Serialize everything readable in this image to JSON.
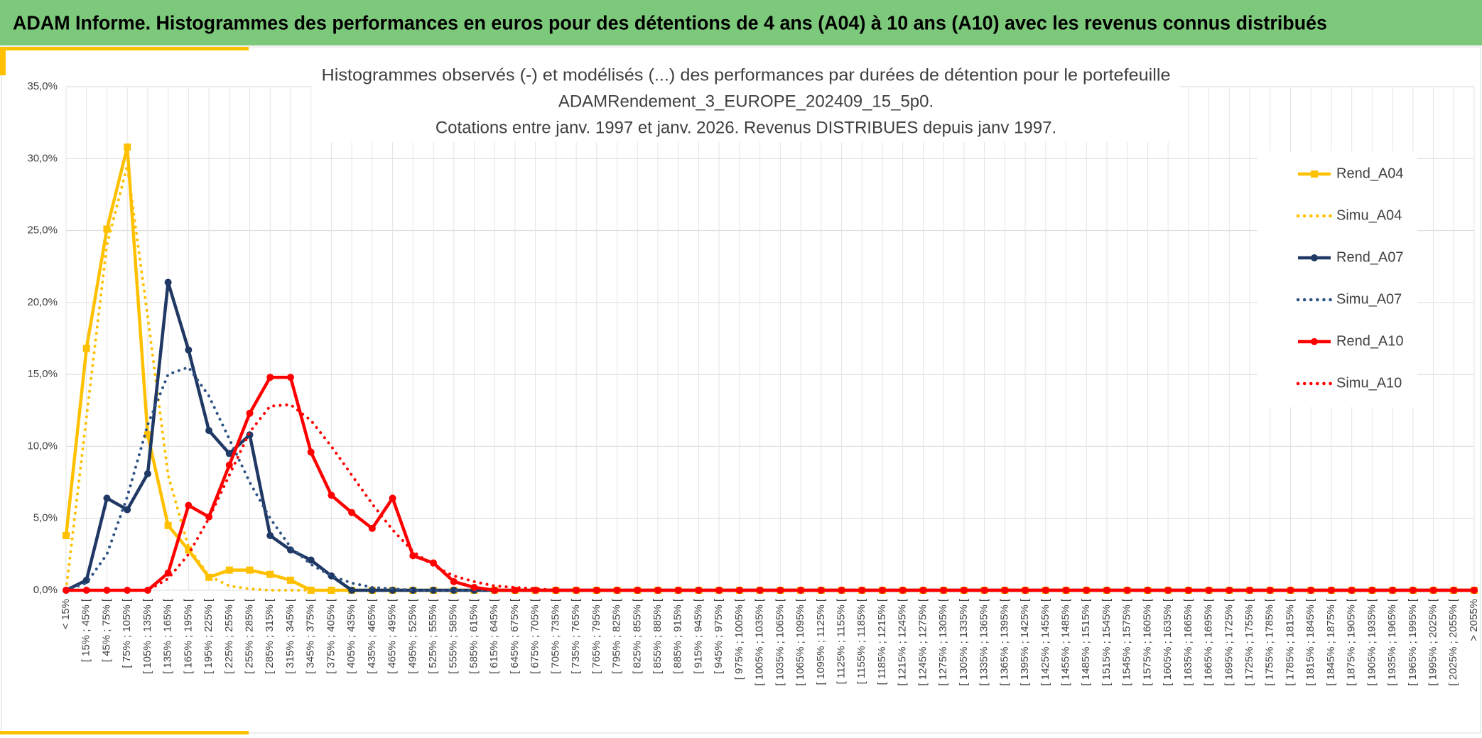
{
  "header": {
    "title": "ADAM Informe. Histogrammes des performances en euros pour des détentions de 4 ans (A04) à 10 ans (A10) avec les revenus connus distribués"
  },
  "chart_data": {
    "type": "line",
    "title": [
      "Histogrammes observés (-) et modélisés (...) des performances  par durées de détention pour le portefeuille",
      "ADAMRendement_3_EUROPE_202409_15_5p0.",
      "Cotations entre janv. 1997 et janv. 2026. Revenus DISTRIBUES depuis janv 1997."
    ],
    "categories": [
      "< 15%",
      "[ 15% ; 45% [",
      "[ 45% ; 75% [",
      "[ 75% ; 105% [",
      "[ 105% ; 135% [",
      "[ 135% ; 165% [",
      "[ 165% ; 195% [",
      "[ 195% ; 225% [",
      "[ 225% ; 255% [",
      "[ 255% ; 285% [",
      "[ 285% ; 315% [",
      "[ 315% ; 345% [",
      "[ 345% ; 375% [",
      "[ 375% ; 405% [",
      "[ 405% ; 435% [",
      "[ 435% ; 465% [",
      "[ 465% ; 495% [",
      "[ 495% ; 525% [",
      "[ 525% ; 555% [",
      "[ 555% ; 585% [",
      "[ 585% ; 615% [",
      "[ 615% ; 645% [",
      "[ 645% ; 675% [",
      "[ 675% ; 705% [",
      "[ 705% ; 735% [",
      "[ 735% ; 765% [",
      "[ 765% ; 795% [",
      "[ 795% ; 825% [",
      "[ 825% ; 855% [",
      "[ 855% ; 885% [",
      "[ 885% ; 915% [",
      "[ 915% ; 945% [",
      "[ 945% ; 975% [",
      "[ 975% ; 1005% [",
      "[ 1005% ; 1035% [",
      "[ 1035% ; 1065% [",
      "[ 1065% ; 1095% [",
      "[ 1095% ; 1125% [",
      "[ 1125% ; 1155% [",
      "[ 1155% ; 1185% [",
      "[ 1185% ; 1215% [",
      "[ 1215% ; 1245% [",
      "[ 1245% ; 1275% [",
      "[ 1275% ; 1305% [",
      "[ 1305% ; 1335% [",
      "[ 1335% ; 1365% [",
      "[ 1365% ; 1395% [",
      "[ 1395% ; 1425% [",
      "[ 1425% ; 1455% [",
      "[ 1455% ; 1485% [",
      "[ 1485% ; 1515% [",
      "[ 1515% ; 1545% [",
      "[ 1545% ; 1575% [",
      "[ 1575% ; 1605% [",
      "[ 1605% ; 1635% [",
      "[ 1635% ; 1665% [",
      "[ 1665% ; 1695% [",
      "[ 1695% ; 1725% [",
      "[ 1725% ; 1755% [",
      "[ 1755% ; 1785% [",
      "[ 1785% ; 1815% [",
      "[ 1815% ; 1845% [",
      "[ 1845% ; 1875% [",
      "[ 1875% ; 1905% [",
      "[ 1905% ; 1935% [",
      "[ 1935% ; 1965% [",
      "[ 1965% ; 1995% [",
      "[ 1995% ; 2025% [",
      "[ 2025% ; 2055% [",
      "> 2055%"
    ],
    "series": [
      {
        "name": "Rend_A04",
        "color": "#ffc000",
        "style": "solid",
        "marker": "square",
        "values": [
          3.8,
          16.8,
          25.1,
          30.8,
          10.8,
          4.5,
          2.8,
          0.9,
          1.4,
          1.4,
          1.1,
          0.7,
          0,
          0,
          0,
          0,
          0,
          0,
          0,
          0,
          0,
          0,
          0,
          0,
          0,
          0,
          0,
          0,
          0,
          0,
          0,
          0,
          0,
          0,
          0,
          0,
          0,
          0,
          0,
          0,
          0,
          0,
          0,
          0,
          0,
          0,
          0,
          0,
          0,
          0,
          0,
          0,
          0,
          0,
          0,
          0,
          0,
          0,
          0,
          0,
          0,
          0,
          0,
          0,
          0,
          0,
          0,
          0,
          0,
          0
        ]
      },
      {
        "name": "Simu_A04",
        "color": "#ffc000",
        "style": "dotted",
        "values": [
          0,
          12,
          24,
          29.5,
          19,
          8,
          3,
          1,
          0.3,
          0.1,
          0,
          0,
          0,
          0,
          0,
          0,
          0,
          0,
          0,
          0,
          0,
          0,
          0,
          0,
          0,
          0,
          0,
          0,
          0,
          0,
          0,
          0,
          0,
          0,
          0,
          0,
          0,
          0,
          0,
          0,
          0,
          0,
          0,
          0,
          0,
          0,
          0,
          0,
          0,
          0,
          0,
          0,
          0,
          0,
          0,
          0,
          0,
          0,
          0,
          0,
          0,
          0,
          0,
          0,
          0,
          0,
          0,
          0,
          0,
          0
        ]
      },
      {
        "name": "Rend_A07",
        "color": "#1f3864",
        "style": "solid",
        "marker": "circle",
        "values": [
          0,
          0.7,
          6.4,
          5.6,
          8.1,
          21.4,
          16.7,
          11.1,
          9.5,
          10.8,
          3.8,
          2.8,
          2.1,
          1.0,
          0,
          0,
          0,
          0,
          0,
          0,
          0,
          0,
          0,
          0,
          0,
          0,
          0,
          0,
          0,
          0,
          0,
          0,
          0,
          0,
          0,
          0,
          0,
          0,
          0,
          0,
          0,
          0,
          0,
          0,
          0,
          0,
          0,
          0,
          0,
          0,
          0,
          0,
          0,
          0,
          0,
          0,
          0,
          0,
          0,
          0,
          0,
          0,
          0,
          0,
          0,
          0,
          0,
          0,
          0,
          0
        ]
      },
      {
        "name": "Simu_A07",
        "color": "#2e5283",
        "style": "dotted",
        "values": [
          0,
          0.5,
          2.5,
          6.5,
          11.5,
          15,
          15.5,
          13.5,
          10.5,
          7.5,
          5,
          3,
          1.8,
          1,
          0.5,
          0.2,
          0.1,
          0,
          0,
          0,
          0,
          0,
          0,
          0,
          0,
          0,
          0,
          0,
          0,
          0,
          0,
          0,
          0,
          0,
          0,
          0,
          0,
          0,
          0,
          0,
          0,
          0,
          0,
          0,
          0,
          0,
          0,
          0,
          0,
          0,
          0,
          0,
          0,
          0,
          0,
          0,
          0,
          0,
          0,
          0,
          0,
          0,
          0,
          0,
          0,
          0,
          0,
          0,
          0,
          0
        ]
      },
      {
        "name": "Rend_A10",
        "color": "#ff0000",
        "style": "solid",
        "marker": "circle",
        "values": [
          0,
          0,
          0,
          0,
          0,
          1.2,
          5.9,
          5.1,
          8.7,
          12.3,
          14.8,
          14.8,
          9.6,
          6.6,
          5.4,
          4.3,
          6.4,
          2.4,
          1.9,
          0.6,
          0.2,
          0,
          0,
          0,
          0,
          0,
          0,
          0,
          0,
          0,
          0,
          0,
          0,
          0,
          0,
          0,
          0,
          0,
          0,
          0,
          0,
          0,
          0,
          0,
          0,
          0,
          0,
          0,
          0,
          0,
          0,
          0,
          0,
          0,
          0,
          0,
          0,
          0,
          0,
          0,
          0,
          0,
          0,
          0,
          0,
          0,
          0,
          0,
          0,
          0
        ]
      },
      {
        "name": "Simu_A10",
        "color": "#ff0000",
        "style": "dotted",
        "values": [
          0,
          0,
          0,
          0,
          0,
          0.8,
          2.5,
          5,
          8,
          11,
          12.8,
          12.9,
          11.8,
          10,
          8,
          6,
          4.2,
          2.7,
          1.7,
          1,
          0.6,
          0.3,
          0.2,
          0.1,
          0,
          0,
          0,
          0,
          0,
          0,
          0,
          0,
          0,
          0,
          0,
          0,
          0,
          0,
          0,
          0,
          0,
          0,
          0,
          0,
          0,
          0,
          0,
          0,
          0,
          0,
          0,
          0,
          0,
          0,
          0,
          0,
          0,
          0,
          0,
          0,
          0,
          0,
          0,
          0,
          0,
          0,
          0,
          0,
          0,
          0
        ]
      }
    ],
    "ylim": [
      0,
      35
    ],
    "yticks": [
      {
        "value": 0,
        "label": "0,0%"
      },
      {
        "value": 5,
        "label": "5,0%"
      },
      {
        "value": 10,
        "label": "10,0%"
      },
      {
        "value": 15,
        "label": "15,0%"
      },
      {
        "value": 20,
        "label": "20,0%"
      },
      {
        "value": 25,
        "label": "25,0%"
      },
      {
        "value": 30,
        "label": "30,0%"
      },
      {
        "value": 35,
        "label": "35,0%"
      }
    ],
    "grid": true,
    "legend": "right"
  }
}
